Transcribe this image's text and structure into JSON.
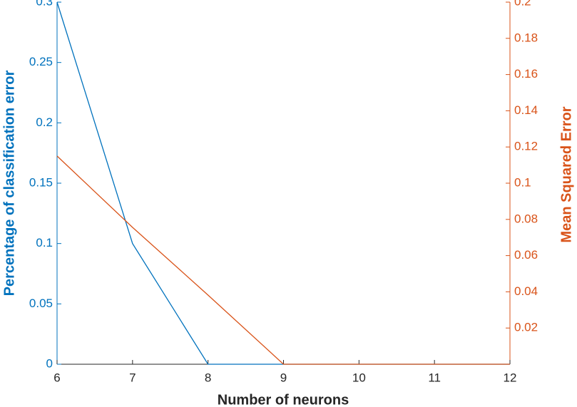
{
  "chart_data": {
    "type": "line",
    "x_label": "Number of neurons",
    "y_label": "Percentage of classification error",
    "y2_label": "Mean Squared Error",
    "x": [
      6,
      7,
      8,
      9,
      10,
      11,
      12
    ],
    "xlim": [
      6,
      12
    ],
    "xticks": [
      6,
      7,
      8,
      9,
      10,
      11,
      12
    ],
    "ylim": [
      0,
      0.3
    ],
    "yticks": [
      0,
      0.05,
      0.1,
      0.15,
      0.2,
      0.25,
      0.3
    ],
    "y2lim": [
      0,
      0.2
    ],
    "y2ticks": [
      0.02,
      0.04,
      0.06,
      0.08,
      0.1,
      0.12,
      0.14,
      0.16,
      0.18,
      0.2
    ],
    "y_color": "#0072bd",
    "y2_color": "#d95319",
    "series": [
      {
        "color": "#0072bd",
        "values": [
          0.3,
          0.1,
          0,
          0,
          0,
          0,
          0
        ]
      },
      {
        "color": "#d95319",
        "axis": "y2",
        "values": [
          0.115,
          0.0756,
          0.0382,
          0,
          0,
          0,
          0
        ]
      }
    ]
  }
}
